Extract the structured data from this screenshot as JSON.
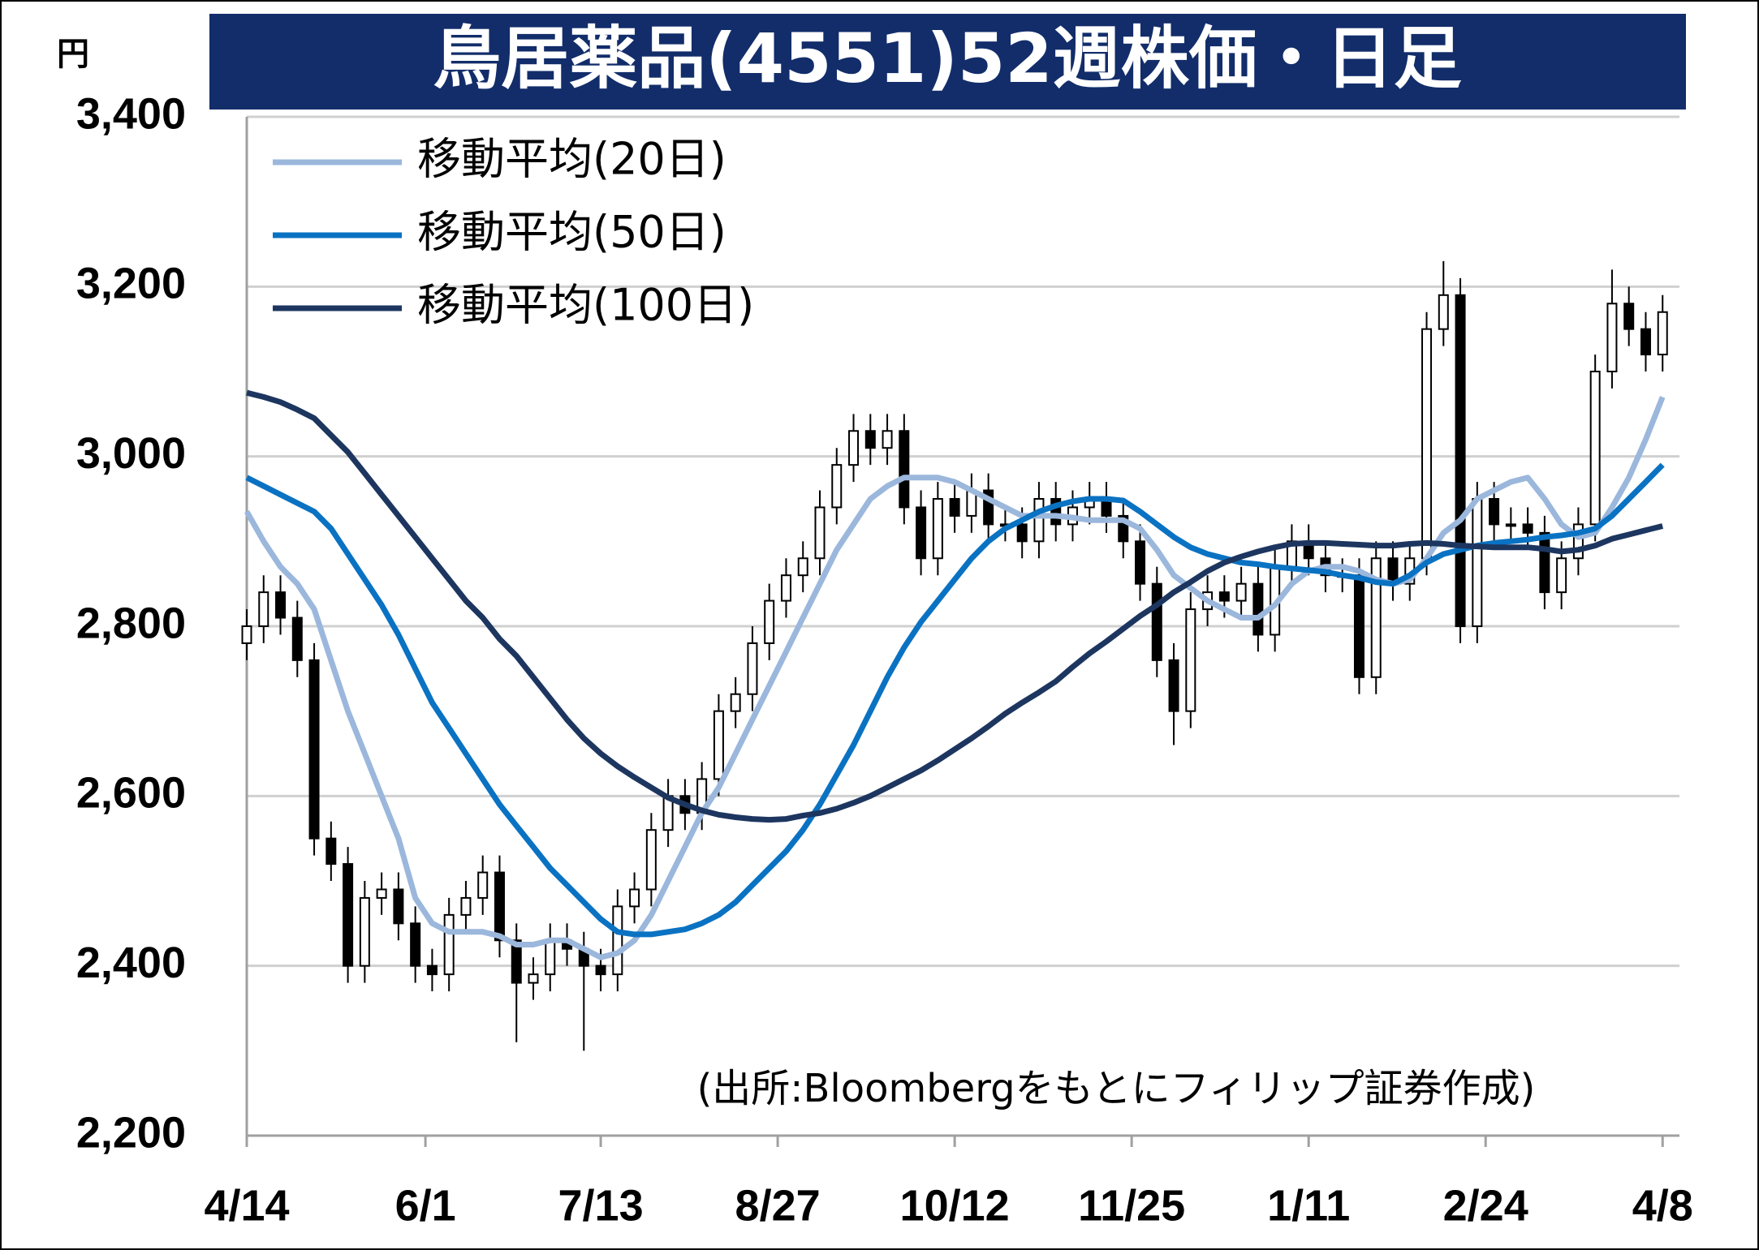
{
  "chart_data": {
    "type": "candlestick",
    "title": "鳥居薬品(4551)52週株価・日足",
    "y_label": "円",
    "note": "(出所:Bloombergをもとにフィリップ証券作成)",
    "xlim": [
      0,
      85
    ],
    "xticks": [
      {
        "value": 0,
        "label": "4/14"
      },
      {
        "value": 10.6,
        "label": "6/1"
      },
      {
        "value": 21,
        "label": "7/13"
      },
      {
        "value": 31.5,
        "label": "8/27"
      },
      {
        "value": 42,
        "label": "10/12"
      },
      {
        "value": 52.5,
        "label": "11/25"
      },
      {
        "value": 63,
        "label": "1/11"
      },
      {
        "value": 73.5,
        "label": "2/24"
      },
      {
        "value": 84,
        "label": "4/8"
      }
    ],
    "ylim": [
      2200,
      3400
    ],
    "yticks": [
      {
        "value": 2200,
        "label": "2,200"
      },
      {
        "value": 2400,
        "label": "2,400"
      },
      {
        "value": 2600,
        "label": "2,600"
      },
      {
        "value": 2800,
        "label": "2,800"
      },
      {
        "value": 3000,
        "label": "3,000"
      },
      {
        "value": 3200,
        "label": "3,200"
      },
      {
        "value": 3400,
        "label": "3,400"
      }
    ],
    "grid": true,
    "legend": "upper left",
    "ohlc": {
      "open": [
        2780,
        2800,
        2840,
        2810,
        2760,
        2550,
        2520,
        2400,
        2480,
        2490,
        2450,
        2400,
        2390,
        2460,
        2480,
        2510,
        2430,
        2380,
        2390,
        2430,
        2420,
        2400,
        2390,
        2470,
        2490,
        2560,
        2600,
        2580,
        2620,
        2700,
        2720,
        2780,
        2830,
        2860,
        2880,
        2940,
        2990,
        3030,
        3010,
        3030,
        2940,
        2880,
        2950,
        2930,
        2960,
        2920,
        2920,
        2900,
        2950,
        2920,
        2940,
        2950,
        2930,
        2900,
        2850,
        2760,
        2700,
        2820,
        2840,
        2830,
        2850,
        2790,
        2870,
        2900,
        2880,
        2860,
        2860,
        2740,
        2880,
        2850,
        2880,
        3150,
        3190,
        2800,
        2950,
        2920,
        2920,
        2910,
        2840,
        2880,
        2920,
        3100,
        3180,
        3150,
        3120
      ],
      "high": [
        2820,
        2860,
        2860,
        2830,
        2780,
        2570,
        2540,
        2500,
        2510,
        2510,
        2470,
        2420,
        2480,
        2500,
        2530,
        2530,
        2450,
        2410,
        2450,
        2450,
        2440,
        2420,
        2490,
        2510,
        2580,
        2620,
        2620,
        2640,
        2720,
        2740,
        2800,
        2850,
        2880,
        2900,
        2960,
        3010,
        3050,
        3050,
        3050,
        3050,
        2960,
        2970,
        2970,
        2980,
        2980,
        2940,
        2940,
        2970,
        2970,
        2960,
        2970,
        2970,
        2950,
        2920,
        2870,
        2780,
        2840,
        2860,
        2860,
        2870,
        2870,
        2890,
        2920,
        2920,
        2900,
        2880,
        2880,
        2900,
        2900,
        2900,
        3170,
        3230,
        3210,
        2970,
        2970,
        2940,
        2940,
        2930,
        2900,
        2940,
        3120,
        3220,
        3200,
        3170,
        3190
      ],
      "low": [
        2760,
        2780,
        2790,
        2740,
        2530,
        2500,
        2380,
        2380,
        2460,
        2430,
        2380,
        2370,
        2370,
        2440,
        2460,
        2410,
        2310,
        2360,
        2370,
        2400,
        2300,
        2370,
        2370,
        2450,
        2470,
        2540,
        2560,
        2560,
        2600,
        2680,
        2700,
        2760,
        2810,
        2840,
        2860,
        2920,
        2970,
        2990,
        2990,
        2920,
        2860,
        2860,
        2910,
        2910,
        2900,
        2900,
        2880,
        2880,
        2900,
        2900,
        2920,
        2910,
        2880,
        2830,
        2740,
        2660,
        2680,
        2800,
        2810,
        2810,
        2770,
        2770,
        2850,
        2860,
        2840,
        2840,
        2720,
        2720,
        2830,
        2830,
        2860,
        3130,
        2780,
        2780,
        2900,
        2900,
        2890,
        2820,
        2820,
        2860,
        2900,
        3080,
        3130,
        3100,
        3100
      ],
      "close": [
        2800,
        2840,
        2810,
        2760,
        2550,
        2520,
        2400,
        2480,
        2490,
        2450,
        2400,
        2390,
        2460,
        2480,
        2510,
        2430,
        2380,
        2390,
        2430,
        2420,
        2400,
        2390,
        2470,
        2490,
        2560,
        2600,
        2580,
        2620,
        2700,
        2720,
        2780,
        2830,
        2860,
        2880,
        2940,
        2990,
        3030,
        3010,
        3030,
        2940,
        2880,
        2950,
        2930,
        2960,
        2920,
        2920,
        2900,
        2950,
        2920,
        2940,
        2950,
        2930,
        2900,
        2850,
        2760,
        2700,
        2820,
        2840,
        2830,
        2850,
        2790,
        2870,
        2900,
        2880,
        2860,
        2860,
        2740,
        2880,
        2850,
        2880,
        3150,
        3190,
        2800,
        2950,
        2920,
        2920,
        2910,
        2840,
        2880,
        2920,
        3100,
        3180,
        3150,
        3120,
        3170
      ]
    },
    "series": [
      {
        "name": "移動平均(20日)",
        "color": "#9bb7dc",
        "values": [
          2935,
          2900,
          2870,
          2850,
          2820,
          2760,
          2700,
          2650,
          2600,
          2550,
          2480,
          2450,
          2440,
          2440,
          2440,
          2435,
          2425,
          2425,
          2430,
          2430,
          2420,
          2410,
          2415,
          2430,
          2460,
          2500,
          2540,
          2580,
          2610,
          2650,
          2690,
          2730,
          2770,
          2810,
          2850,
          2890,
          2920,
          2950,
          2965,
          2975,
          2975,
          2975,
          2970,
          2960,
          2950,
          2940,
          2930,
          2930,
          2930,
          2928,
          2925,
          2925,
          2925,
          2915,
          2890,
          2860,
          2845,
          2830,
          2820,
          2810,
          2810,
          2825,
          2850,
          2865,
          2870,
          2870,
          2865,
          2855,
          2850,
          2855,
          2880,
          2910,
          2925,
          2950,
          2960,
          2970,
          2975,
          2950,
          2920,
          2905,
          2910,
          2940,
          2975,
          3020,
          3070
        ]
      },
      {
        "name": "移動平均(50日)",
        "color": "#0a72c2",
        "values": [
          2975,
          2965,
          2955,
          2945,
          2935,
          2915,
          2885,
          2855,
          2825,
          2790,
          2750,
          2710,
          2680,
          2650,
          2620,
          2590,
          2565,
          2540,
          2515,
          2495,
          2475,
          2455,
          2440,
          2437,
          2437,
          2440,
          2443,
          2450,
          2460,
          2475,
          2495,
          2515,
          2535,
          2560,
          2590,
          2625,
          2660,
          2700,
          2740,
          2775,
          2805,
          2830,
          2855,
          2880,
          2900,
          2915,
          2925,
          2935,
          2942,
          2947,
          2950,
          2950,
          2948,
          2935,
          2920,
          2905,
          2893,
          2885,
          2880,
          2875,
          2873,
          2870,
          2868,
          2866,
          2864,
          2860,
          2857,
          2852,
          2850,
          2860,
          2875,
          2885,
          2890,
          2895,
          2898,
          2900,
          2902,
          2905,
          2907,
          2910,
          2915,
          2930,
          2950,
          2970,
          2990
        ]
      },
      {
        "name": "移動平均(100日)",
        "color": "#1d3660",
        "values": [
          3075,
          3070,
          3064,
          3055,
          3045,
          3025,
          3005,
          2980,
          2955,
          2930,
          2905,
          2880,
          2855,
          2830,
          2810,
          2785,
          2765,
          2740,
          2715,
          2690,
          2668,
          2650,
          2635,
          2622,
          2610,
          2598,
          2590,
          2583,
          2578,
          2575,
          2573,
          2572,
          2573,
          2577,
          2580,
          2585,
          2592,
          2600,
          2610,
          2620,
          2630,
          2642,
          2655,
          2668,
          2682,
          2697,
          2710,
          2722,
          2735,
          2752,
          2768,
          2782,
          2797,
          2812,
          2825,
          2840,
          2852,
          2865,
          2875,
          2882,
          2888,
          2893,
          2897,
          2898,
          2898,
          2897,
          2896,
          2895,
          2895,
          2897,
          2898,
          2897,
          2895,
          2894,
          2893,
          2893,
          2893,
          2891,
          2888,
          2890,
          2895,
          2903,
          2908,
          2913,
          2918
        ]
      }
    ]
  }
}
